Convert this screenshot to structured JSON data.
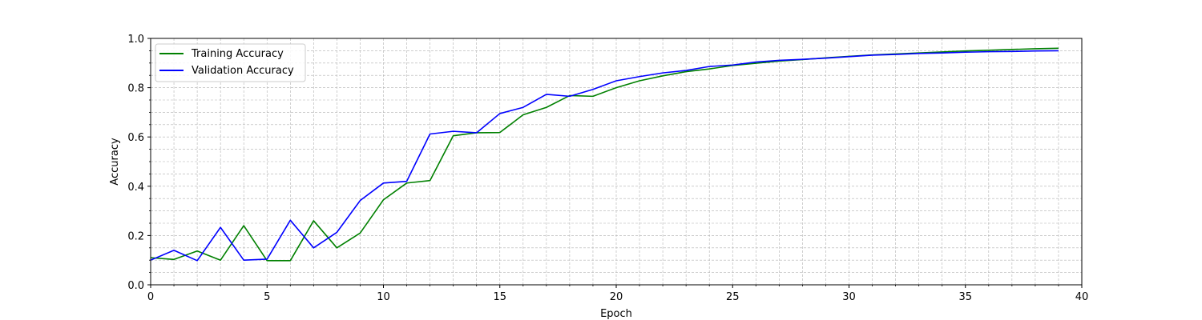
{
  "chart_data": {
    "type": "line",
    "title": "",
    "xlabel": "Epoch",
    "ylabel": "Accuracy",
    "xlim": [
      0,
      40
    ],
    "ylim": [
      0.0,
      1.0
    ],
    "x_ticks": [
      0,
      5,
      10,
      15,
      20,
      25,
      30,
      35,
      40
    ],
    "x_tick_labels": [
      "0",
      "5",
      "10",
      "15",
      "20",
      "25",
      "30",
      "35",
      "40"
    ],
    "y_ticks": [
      0.0,
      0.2,
      0.4,
      0.6,
      0.8,
      1.0
    ],
    "y_tick_labels": [
      "0.0",
      "0.2",
      "0.4",
      "0.6",
      "0.8",
      "1.0"
    ],
    "grid": true,
    "legend_position": "upper-left",
    "x": [
      0,
      1,
      2,
      3,
      4,
      5,
      6,
      7,
      8,
      9,
      10,
      11,
      12,
      13,
      14,
      15,
      16,
      17,
      18,
      19,
      20,
      21,
      22,
      23,
      24,
      25,
      26,
      27,
      28,
      29,
      30,
      31,
      32,
      33,
      34,
      35,
      36,
      37,
      38,
      39
    ],
    "series": [
      {
        "name": "Training Accuracy",
        "color": "#008000",
        "values": [
          0.11,
          0.103,
          0.137,
          0.1,
          0.24,
          0.098,
          0.098,
          0.26,
          0.15,
          0.21,
          0.345,
          0.413,
          0.423,
          0.605,
          0.617,
          0.618,
          0.69,
          0.72,
          0.768,
          0.765,
          0.8,
          0.828,
          0.848,
          0.865,
          0.876,
          0.89,
          0.899,
          0.908,
          0.914,
          0.921,
          0.927,
          0.933,
          0.937,
          0.941,
          0.945,
          0.949,
          0.952,
          0.955,
          0.958,
          0.96
        ]
      },
      {
        "name": "Validation Accuracy",
        "color": "#0000ff",
        "values": [
          0.1,
          0.14,
          0.098,
          0.233,
          0.1,
          0.104,
          0.262,
          0.15,
          0.213,
          0.342,
          0.413,
          0.42,
          0.612,
          0.623,
          0.617,
          0.695,
          0.72,
          0.773,
          0.765,
          0.793,
          0.828,
          0.845,
          0.86,
          0.87,
          0.886,
          0.892,
          0.904,
          0.911,
          0.915,
          0.92,
          0.926,
          0.932,
          0.935,
          0.939,
          0.941,
          0.944,
          0.946,
          0.947,
          0.949,
          0.95
        ]
      }
    ]
  }
}
